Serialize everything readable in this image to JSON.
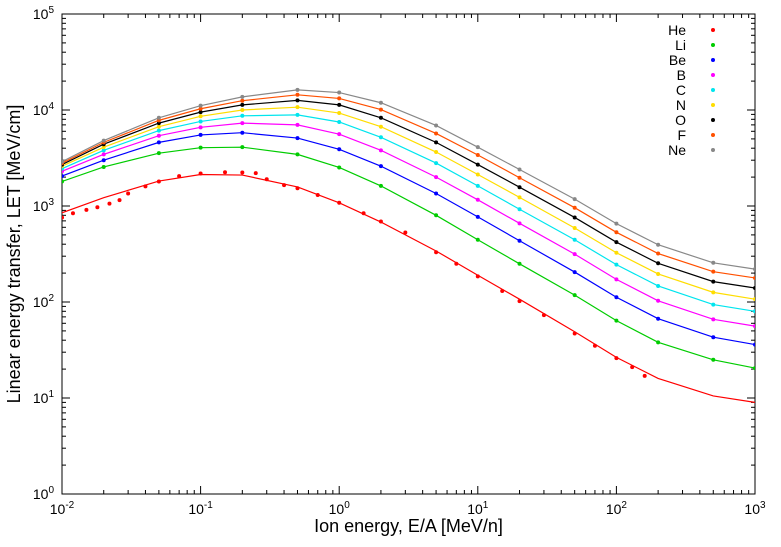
{
  "chart_data": {
    "type": "scatter",
    "title": "",
    "xlabel": "Ion energy, E/A [MeV/n]",
    "ylabel": "Linear energy transfer, LET [MeV/cm]",
    "xscale": "log",
    "yscale": "log",
    "xlim": [
      0.01,
      1000
    ],
    "ylim": [
      1,
      100000
    ],
    "x_ticks": [
      {
        "value": 0.01,
        "base": "10",
        "exp": "-2"
      },
      {
        "value": 0.1,
        "base": "10",
        "exp": "-1"
      },
      {
        "value": 1,
        "base": "10",
        "exp": "0"
      },
      {
        "value": 10,
        "base": "10",
        "exp": "1"
      },
      {
        "value": 100,
        "base": "10",
        "exp": "2"
      },
      {
        "value": 1000,
        "base": "10",
        "exp": "3"
      }
    ],
    "y_ticks": [
      {
        "value": 1,
        "base": "10",
        "exp": "0"
      },
      {
        "value": 10,
        "base": "10",
        "exp": "1"
      },
      {
        "value": 100,
        "base": "10",
        "exp": "2"
      },
      {
        "value": 1000,
        "base": "10",
        "exp": "3"
      },
      {
        "value": 10000,
        "base": "10",
        "exp": "4"
      },
      {
        "value": 100000,
        "base": "10",
        "exp": "5"
      }
    ],
    "grid": false,
    "legend_position": "top-right",
    "model_curve_x": [
      0.01,
      0.02,
      0.05,
      0.1,
      0.2,
      0.5,
      1,
      2,
      5,
      10,
      20,
      50,
      100,
      200,
      500,
      1000
    ],
    "series": [
      {
        "name": "He",
        "color": "#ff0000",
        "y_model": [
          850,
          1220,
          1820,
          2130,
          2100,
          1580,
          1080,
          680,
          340,
          190,
          107,
          49,
          26.5,
          16,
          10.5,
          9
        ],
        "points_x": [
          0.01,
          0.012,
          0.015,
          0.018,
          0.022,
          0.026,
          0.03,
          0.04,
          0.05,
          0.07,
          0.1,
          0.15,
          0.2,
          0.25,
          0.3,
          0.4,
          0.5,
          0.7,
          1,
          1.5,
          2,
          3,
          5,
          7,
          10,
          15,
          20,
          30,
          50,
          70,
          100,
          130,
          160
        ],
        "points_y": [
          760,
          840,
          910,
          970,
          1060,
          1150,
          1350,
          1600,
          1800,
          2050,
          2180,
          2250,
          2230,
          2200,
          1900,
          1650,
          1530,
          1300,
          1080,
          840,
          690,
          530,
          330,
          250,
          185,
          130,
          102,
          73,
          47,
          35,
          26,
          21,
          17
        ]
      },
      {
        "name": "Li",
        "color": "#00cc00",
        "y_model": [
          1800,
          2550,
          3550,
          4050,
          4100,
          3450,
          2520,
          1620,
          800,
          445,
          250,
          118,
          64,
          38,
          25,
          20.5
        ],
        "points_x": [
          0.01,
          0.02,
          0.05,
          0.1,
          0.2,
          0.5,
          1,
          2,
          5,
          10,
          20,
          50,
          100,
          200,
          500,
          1000
        ],
        "points_y": [
          1800,
          2550,
          3550,
          4050,
          4100,
          3450,
          2520,
          1620,
          800,
          445,
          250,
          118,
          64,
          38,
          25,
          20.5
        ]
      },
      {
        "name": "Be",
        "color": "#0000ff",
        "y_model": [
          2050,
          3000,
          4600,
          5500,
          5800,
          5100,
          3900,
          2600,
          1350,
          770,
          435,
          205,
          112,
          67,
          43,
          36
        ],
        "points_x": [
          0.01,
          0.02,
          0.05,
          0.1,
          0.2,
          0.5,
          1,
          2,
          5,
          10,
          20,
          50,
          100,
          200,
          500,
          1000
        ],
        "points_y": [
          2050,
          3000,
          4600,
          5500,
          5800,
          5100,
          3900,
          2600,
          1350,
          770,
          435,
          205,
          112,
          67,
          43,
          36
        ]
      },
      {
        "name": "B",
        "color": "#ff00ff",
        "y_model": [
          2300,
          3450,
          5400,
          6600,
          7300,
          7000,
          5600,
          3800,
          2000,
          1160,
          660,
          315,
          172,
          103,
          66,
          56
        ],
        "points_x": [
          0.01,
          0.02,
          0.05,
          0.1,
          0.2,
          0.5,
          1,
          2,
          5,
          10,
          20,
          50,
          100,
          200,
          500,
          1000
        ],
        "points_y": [
          2300,
          3450,
          5400,
          6600,
          7300,
          7000,
          5600,
          3800,
          2000,
          1160,
          660,
          315,
          172,
          103,
          66,
          56
        ]
      },
      {
        "name": "C",
        "color": "#00e5ee",
        "y_model": [
          2450,
          3800,
          6100,
          7600,
          8700,
          8900,
          7500,
          5200,
          2800,
          1620,
          925,
          445,
          245,
          147,
          94,
          80
        ],
        "points_x": [
          0.01,
          0.02,
          0.05,
          0.1,
          0.2,
          0.5,
          1,
          2,
          5,
          10,
          20,
          50,
          100,
          200,
          500,
          1000
        ],
        "points_y": [
          2450,
          3800,
          6100,
          7600,
          8700,
          8900,
          7500,
          5200,
          2800,
          1620,
          925,
          445,
          245,
          147,
          94,
          80
        ]
      },
      {
        "name": "N",
        "color": "#ffdd00",
        "y_model": [
          2600,
          4100,
          6700,
          8600,
          10000,
          10700,
          9300,
          6700,
          3650,
          2130,
          1230,
          590,
          326,
          196,
          126,
          107
        ],
        "points_x": [
          0.01,
          0.02,
          0.05,
          0.1,
          0.2,
          0.5,
          1,
          2,
          5,
          10,
          20,
          50,
          100,
          200,
          500,
          1000
        ],
        "points_y": [
          2600,
          4100,
          6700,
          8600,
          10000,
          10700,
          9300,
          6700,
          3650,
          2130,
          1230,
          590,
          326,
          196,
          126,
          107
        ]
      },
      {
        "name": "O",
        "color": "#000000",
        "y_model": [
          2700,
          4400,
          7300,
          9500,
          11300,
          12600,
          11300,
          8300,
          4600,
          2700,
          1570,
          760,
          420,
          253,
          163,
          140
        ],
        "points_x": [
          0.01,
          0.02,
          0.05,
          0.1,
          0.2,
          0.5,
          1,
          2,
          5,
          10,
          20,
          50,
          100,
          200,
          500,
          1000
        ],
        "points_y": [
          2700,
          4400,
          7300,
          9500,
          11300,
          12600,
          11300,
          8300,
          4600,
          2700,
          1570,
          760,
          420,
          253,
          163,
          140
        ]
      },
      {
        "name": "F",
        "color": "#ff5000",
        "y_model": [
          2800,
          4600,
          7800,
          10300,
          12500,
          14400,
          13200,
          10100,
          5700,
          3400,
          1970,
          960,
          532,
          320,
          207,
          178
        ],
        "points_x": [
          0.01,
          0.02,
          0.05,
          0.1,
          0.2,
          0.5,
          1,
          2,
          5,
          10,
          20,
          50,
          100,
          200,
          500,
          1000
        ],
        "points_y": [
          2800,
          4600,
          7800,
          10300,
          12500,
          14400,
          13200,
          10100,
          5700,
          3400,
          1970,
          960,
          532,
          320,
          207,
          178
        ]
      },
      {
        "name": "Ne",
        "color": "#888888",
        "y_model": [
          2900,
          4800,
          8300,
          11100,
          13700,
          16200,
          15200,
          11900,
          6900,
          4100,
          2400,
          1180,
          655,
          395,
          256,
          220
        ],
        "points_x": [
          0.01,
          0.02,
          0.05,
          0.1,
          0.2,
          0.5,
          1,
          2,
          5,
          10,
          20,
          50,
          100,
          200,
          500,
          1000
        ],
        "points_y": [
          2900,
          4800,
          8300,
          11100,
          13700,
          16200,
          15200,
          11900,
          6900,
          4100,
          2400,
          1180,
          655,
          395,
          256,
          220
        ]
      }
    ]
  }
}
